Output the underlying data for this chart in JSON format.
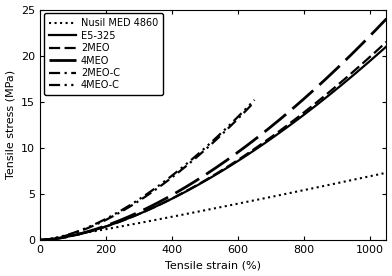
{
  "title": "",
  "xlabel": "Tensile strain (%)",
  "ylabel": "Tensile stress (MPa)",
  "xlim": [
    0,
    1050
  ],
  "ylim": [
    0,
    25
  ],
  "xticks": [
    0,
    200,
    400,
    600,
    800,
    1000
  ],
  "yticks": [
    0,
    5,
    10,
    15,
    20,
    25
  ],
  "curves": [
    {
      "label": "Nusil MED 4860",
      "linestyle": "dotted",
      "color": "black",
      "linewidth": 1.5,
      "strain_end": 1050,
      "stress_end": 7.3,
      "power": 1.1
    },
    {
      "label": "E5-325",
      "linestyle": "solid",
      "color": "black",
      "linewidth": 1.6,
      "strain_end": 1050,
      "stress_end": 21.0,
      "power": 1.6
    },
    {
      "label": "2MEO",
      "linestyle": "dashed_short",
      "color": "black",
      "linewidth": 1.6,
      "dashes": [
        5,
        2
      ],
      "strain_end": 1050,
      "stress_end": 21.5,
      "power": 1.62
    },
    {
      "label": "4MEO",
      "linestyle": "dashed_long",
      "color": "black",
      "linewidth": 2.0,
      "dashes": [
        10,
        3
      ],
      "strain_end": 1050,
      "stress_end": 24.0,
      "power": 1.65
    },
    {
      "label": "2MEO-C",
      "linestyle": "dashdot",
      "color": "black",
      "linewidth": 1.6,
      "dashes": [
        5,
        2,
        1,
        2
      ],
      "strain_end": 650,
      "stress_end": 15.0,
      "power": 1.63
    },
    {
      "label": "4MEO-C",
      "linestyle": "dashdotdot",
      "color": "black",
      "linewidth": 1.6,
      "dashes": [
        5,
        2,
        1,
        2,
        1,
        2
      ],
      "strain_end": 650,
      "stress_end": 15.2,
      "power": 1.6
    }
  ],
  "figsize": [
    3.92,
    2.76
  ],
  "dpi": 100,
  "background_color": "white",
  "font_size": 8,
  "legend_fontsize": 7
}
